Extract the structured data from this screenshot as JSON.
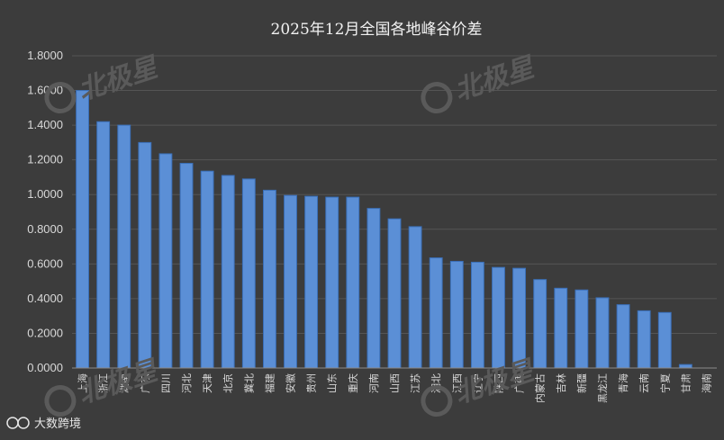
{
  "chart_data": {
    "type": "bar",
    "title": "2025年12月全国各地峰谷价差",
    "xlabel": "",
    "ylabel": "",
    "ylim": [
      0,
      1.8
    ],
    "y_ticks": [
      "0.0000",
      "0.2000",
      "0.4000",
      "0.6000",
      "0.8000",
      "1.0000",
      "1.2000",
      "1.4000",
      "1.6000",
      "1.8000"
    ],
    "grid": true,
    "legend": "none",
    "bar_color": "#5b8fd6",
    "categories": [
      "上海",
      "浙江",
      "湖南",
      "广东",
      "四川",
      "河北",
      "天津",
      "北京",
      "冀北",
      "福建",
      "安徽",
      "贵州",
      "山东",
      "重庆",
      "河南",
      "山西",
      "江苏",
      "湖北",
      "江西",
      "辽宁",
      "陕西",
      "广西",
      "内蒙古",
      "吉林",
      "新疆",
      "黑龙江",
      "青海",
      "云南",
      "宁夏",
      "甘肃",
      "海南"
    ],
    "values": [
      1.6,
      1.42,
      1.4,
      1.3,
      1.235,
      1.18,
      1.135,
      1.11,
      1.09,
      1.025,
      0.995,
      0.99,
      0.985,
      0.985,
      0.92,
      0.86,
      0.815,
      0.635,
      0.615,
      0.61,
      0.58,
      0.575,
      0.51,
      0.46,
      0.45,
      0.405,
      0.365,
      0.33,
      0.32,
      0.02,
      0.0
    ]
  },
  "watermark": {
    "text": "北极星"
  },
  "source": {
    "text": "大数跨境"
  }
}
